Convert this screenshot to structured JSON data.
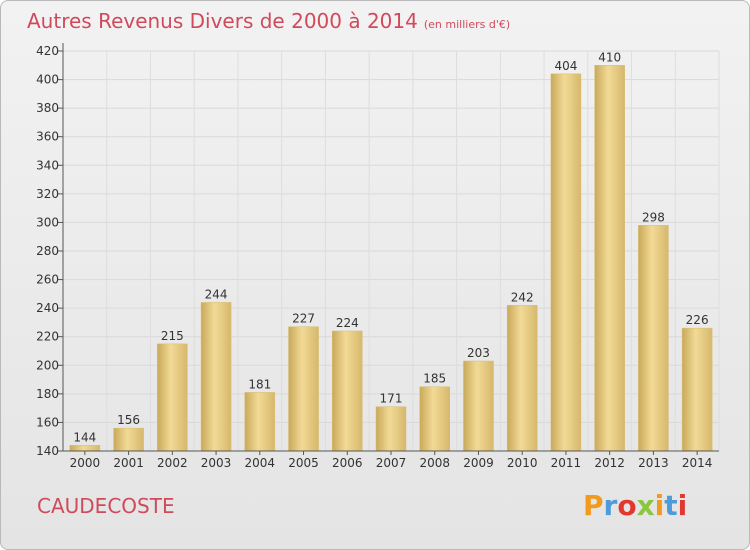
{
  "title": "Autres Revenus Divers de 2000 à 2014",
  "subtitle": "(en milliers d'€)",
  "location": "CAUDECOSTE",
  "logo": {
    "letters": [
      "P",
      "r",
      "o",
      "x",
      "i",
      "t",
      "i"
    ],
    "colors": [
      "#f29a1e",
      "#4f9ad8",
      "#e2382e",
      "#8cc63f",
      "#f29a1e",
      "#4f9ad8",
      "#e2382e"
    ]
  },
  "colors": {
    "bar": "#e4c77a",
    "title": "#d04a5c"
  },
  "chart_data": {
    "type": "bar",
    "categories": [
      "2000",
      "2001",
      "2002",
      "2003",
      "2004",
      "2005",
      "2006",
      "2007",
      "2008",
      "2009",
      "2010",
      "2011",
      "2012",
      "2013",
      "2014"
    ],
    "values": [
      144,
      156,
      215,
      244,
      181,
      227,
      224,
      171,
      185,
      203,
      242,
      404,
      410,
      298,
      226
    ],
    "title": "Autres Revenus Divers de 2000 à 2014",
    "xlabel": "",
    "ylabel": "",
    "ylim": [
      140,
      420
    ],
    "yticks": [
      140,
      160,
      180,
      200,
      220,
      240,
      260,
      280,
      300,
      320,
      340,
      360,
      380,
      400,
      420
    ],
    "grid": true
  }
}
